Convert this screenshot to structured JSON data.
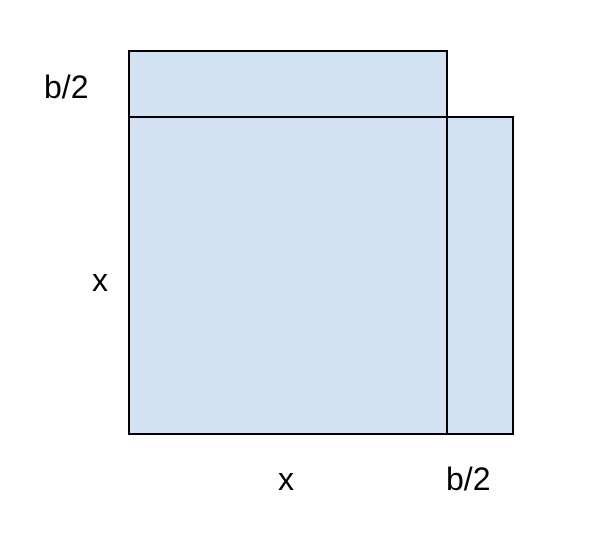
{
  "diagram": {
    "fill_color": "#d3e2f2",
    "stroke_color": "#000000",
    "labels": {
      "top_strip_height": "b/2",
      "square_height": "x",
      "square_width": "x",
      "right_strip_width": "b/2"
    }
  }
}
